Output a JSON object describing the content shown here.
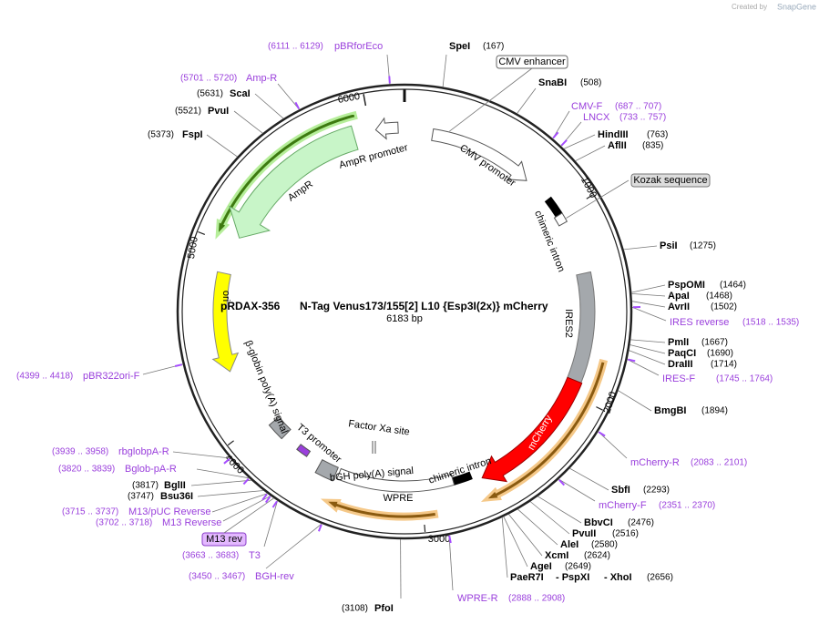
{
  "header": {
    "created_by": "Created by",
    "brand": "SnapGene"
  },
  "plasmid": {
    "name": "pRDAX-356",
    "description": "N-Tag Venus173/155[2] L10 {Esp3I(2x)} mCherry",
    "size": "6183 bp"
  },
  "ring_ticks": [
    1000,
    2000,
    3000,
    4000,
    5000,
    6000
  ],
  "sites": [
    {
      "names": [
        "SpeI"
      ],
      "position": "(167)"
    },
    {
      "names": [
        "SnaBI"
      ],
      "position": "(508)"
    },
    {
      "names": [
        "HindIII"
      ],
      "position": "(763)"
    },
    {
      "names": [
        "AflII"
      ],
      "position": "(835)"
    },
    {
      "names": [
        "PsiI"
      ],
      "position": "(1275)"
    },
    {
      "names": [
        "PspOMI"
      ],
      "position": "(1464)"
    },
    {
      "names": [
        "ApaI"
      ],
      "position": "(1468)"
    },
    {
      "names": [
        "AvrII"
      ],
      "position": "(1502)"
    },
    {
      "names": [
        "PmlI"
      ],
      "position": "(1667)"
    },
    {
      "names": [
        "PaqCI"
      ],
      "position": "(1690)"
    },
    {
      "names": [
        "DraIII"
      ],
      "position": "(1714)"
    },
    {
      "names": [
        "BmgBI"
      ],
      "position": "(1894)"
    },
    {
      "names": [
        "SbfI"
      ],
      "position": "(2293)"
    },
    {
      "names": [
        "BbvCI"
      ],
      "position": "(2476)"
    },
    {
      "names": [
        "PvuII"
      ],
      "position": "(2516)"
    },
    {
      "names": [
        "AleI"
      ],
      "position": "(2580)"
    },
    {
      "names": [
        "XcmI"
      ],
      "position": "(2624)"
    },
    {
      "names": [
        "AgeI"
      ],
      "position": "(2649)"
    },
    {
      "names": [
        "PaeR7I",
        "- PspXI",
        "- XhoI"
      ],
      "position": "(2656)"
    },
    {
      "names": [
        "PfoI"
      ],
      "position": "(3108)"
    },
    {
      "names": [
        "BglII"
      ],
      "position": "(3817)"
    },
    {
      "names": [
        "Bsu36I"
      ],
      "position": "(3747)"
    },
    {
      "names": [
        "FspI"
      ],
      "position": "(5373)"
    },
    {
      "names": [
        "PvuI"
      ],
      "position": "(5521)"
    },
    {
      "names": [
        "ScaI"
      ],
      "position": "(5631)"
    }
  ],
  "primers": [
    {
      "name": "pBRforEco",
      "range": "(6111 .. 6129)"
    },
    {
      "name": "Amp-R",
      "range": "(5701 .. 5720)"
    },
    {
      "name": "CMV-F",
      "range": "(687 .. 707)"
    },
    {
      "name": "LNCX",
      "range": "(733 .. 757)"
    },
    {
      "name": "IRES reverse",
      "range": "(1518 .. 1535)"
    },
    {
      "name": "IRES-F",
      "range": "(1745 .. 1764)"
    },
    {
      "name": "mCherry-R",
      "range": "(2083 .. 2101)"
    },
    {
      "name": "mCherry-F",
      "range": "(2351 .. 2370)"
    },
    {
      "name": "WPRE-R",
      "range": "(2888 .. 2908)"
    },
    {
      "name": "BGH-rev",
      "range": "(3450 .. 3467)"
    },
    {
      "name": "T3",
      "range": "(3663 .. 3683)"
    },
    {
      "name": "M13 Reverse",
      "range": "(3702 .. 3718)"
    },
    {
      "name": "M13/pUC Reverse",
      "range": "(3715 .. 3737)"
    },
    {
      "name": "Bglob-pA-R",
      "range": "(3820 .. 3839)"
    },
    {
      "name": "rbglobpA-R",
      "range": "(3939 .. 3958)"
    },
    {
      "name": "pBR322ori-F",
      "range": "(4399 .. 4418)"
    }
  ],
  "boxed_labels": [
    "CMV enhancer",
    "Kozak sequence",
    "M13 rev"
  ],
  "map_labels": [
    "CMV promoter",
    "chimeric intron",
    "IRES2",
    "mCherry",
    "chimeric intron",
    "WPRE",
    "bGH poly(A) signal",
    "Factor Xa site",
    "T3 promoter",
    "β-globin poly(A) signal",
    "ori",
    "AmpR",
    "AmpR promoter"
  ]
}
